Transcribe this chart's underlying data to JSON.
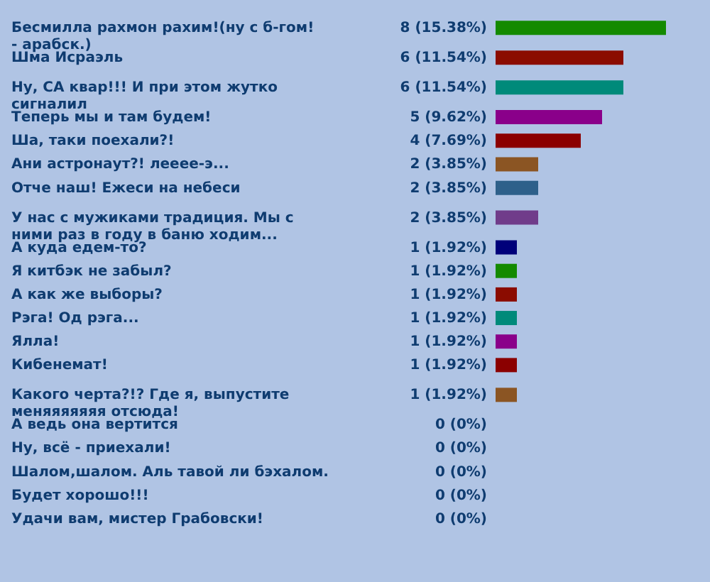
{
  "chart_data": {
    "type": "bar",
    "orientation": "horizontal",
    "categories": [
      "Бесмилла рахмон рахим!(ну с б-гом! - арабск.)",
      "Шма Исраэль",
      "Ну, СА квар!!! И при этом жутко сигналил",
      "Теперь мы и там будем!",
      "Ша, таки поехали?!",
      "Ани астронаут?! лееее-э...",
      "Отче наш! Ежеси на небеси",
      "У нас с мужиками традиция. Мы с ними раз в году в баню ходим...",
      "А куда едем-то?",
      "Я китбэк не забыл?",
      "А как же выборы?",
      "Рэга! Од рэга...",
      "Ялла!",
      "Кибенемат!",
      "Какого черта?!? Где я, выпустите меняяяяяяя отсюда!",
      "А ведь она вертится",
      "Ну, всё - приехали!",
      "Шалом,шалом. Аль тавой ли бэхалом.",
      "Будет хорошо!!!",
      "Удачи вам, мистер Грабовски!"
    ],
    "values": [
      8,
      6,
      6,
      5,
      4,
      2,
      2,
      2,
      1,
      1,
      1,
      1,
      1,
      1,
      1,
      0,
      0,
      0,
      0,
      0
    ],
    "value_labels": [
      "8 (15.38%)",
      "6 (11.54%)",
      "6 (11.54%)",
      "5 (9.62%)",
      "4 (7.69%)",
      "2 (3.85%)",
      "2 (3.85%)",
      "2 (3.85%)",
      "1 (1.92%)",
      "1 (1.92%)",
      "1 (1.92%)",
      "1 (1.92%)",
      "1 (1.92%)",
      "1 (1.92%)",
      "1 (1.92%)",
      "0 (0%)",
      "0 (0%)",
      "0 (0%)",
      "0 (0%)",
      "0 (0%)"
    ],
    "colors": [
      "#148a00",
      "#8b0c00",
      "#008a7a",
      "#8a008a",
      "#8b0000",
      "#8b5523",
      "#2e608a",
      "#703c8a",
      "#00007a",
      "#148a00",
      "#8b0c00",
      "#008a7a",
      "#8a008a",
      "#8b0000",
      "#8b5523",
      null,
      null,
      null,
      null,
      null
    ]
  }
}
